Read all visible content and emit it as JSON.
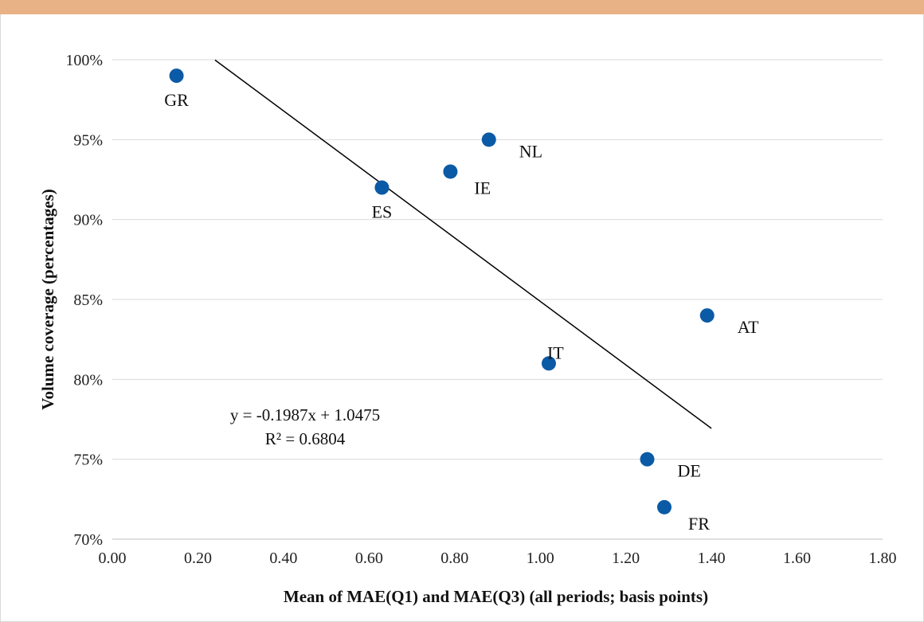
{
  "colors": {
    "header_band": "#e8b186",
    "marker": "#0b5aa6",
    "gridline": "#d9d9d9",
    "trendline": "#000000"
  },
  "chart_data": {
    "type": "scatter",
    "title": "",
    "xlabel": "Mean of MAE(Q1) and MAE(Q3) (all periods; basis points)",
    "ylabel": "Volume coverage (percentages)",
    "xlim": [
      0,
      1.8
    ],
    "ylim": [
      0.7,
      1.0
    ],
    "x_ticks": [
      {
        "value": 0.0,
        "label": "0.00"
      },
      {
        "value": 0.2,
        "label": "0.20"
      },
      {
        "value": 0.4,
        "label": "0.40"
      },
      {
        "value": 0.6,
        "label": "0.60"
      },
      {
        "value": 0.8,
        "label": "0.80"
      },
      {
        "value": 1.0,
        "label": "1.00"
      },
      {
        "value": 1.2,
        "label": "1.20"
      },
      {
        "value": 1.4,
        "label": "1.40"
      },
      {
        "value": 1.6,
        "label": "1.60"
      },
      {
        "value": 1.8,
        "label": "1.80"
      }
    ],
    "y_ticks": [
      {
        "value": 0.7,
        "label": "70%"
      },
      {
        "value": 0.75,
        "label": "75%"
      },
      {
        "value": 0.8,
        "label": "80%"
      },
      {
        "value": 0.85,
        "label": "85%"
      },
      {
        "value": 0.9,
        "label": "90%"
      },
      {
        "value": 0.95,
        "label": "95%"
      },
      {
        "value": 1.0,
        "label": "100%"
      }
    ],
    "grid": "horizontal",
    "legend": "none",
    "points": [
      {
        "label": "GR",
        "x": 0.15,
        "y": 0.99,
        "label_pos": "below"
      },
      {
        "label": "ES",
        "x": 0.63,
        "y": 0.92,
        "label_pos": "below"
      },
      {
        "label": "IE",
        "x": 0.79,
        "y": 0.93,
        "label_pos": "below-right"
      },
      {
        "label": "NL",
        "x": 0.88,
        "y": 0.95,
        "label_pos": "right"
      },
      {
        "label": "IT",
        "x": 1.02,
        "y": 0.81,
        "label_pos": "above"
      },
      {
        "label": "AT",
        "x": 1.39,
        "y": 0.84,
        "label_pos": "right"
      },
      {
        "label": "DE",
        "x": 1.25,
        "y": 0.75,
        "label_pos": "right"
      },
      {
        "label": "FR",
        "x": 1.29,
        "y": 0.72,
        "label_pos": "below-right"
      }
    ],
    "trendline": {
      "slope": -0.1987,
      "intercept": 1.0475,
      "x_range": [
        0.24,
        1.4
      ]
    },
    "annotations": {
      "equation": "y = -0.1987x + 1.0475",
      "r_squared": "R² = 0.6804"
    }
  }
}
